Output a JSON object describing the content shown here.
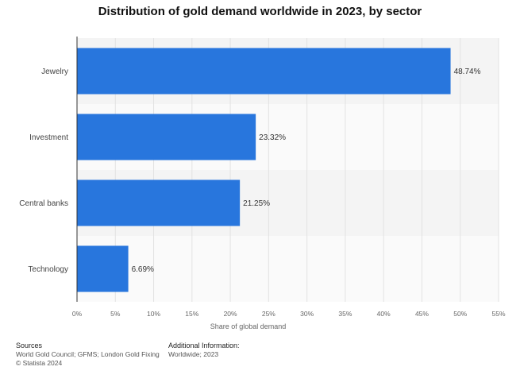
{
  "chart_data": {
    "type": "bar",
    "orientation": "horizontal",
    "title": "Distribution of gold demand worldwide in 2023, by sector",
    "xlabel": "Share of global demand",
    "ylabel": "",
    "categories": [
      "Jewelry",
      "Investment",
      "Central banks",
      "Technology"
    ],
    "values": [
      48.74,
      23.32,
      21.25,
      6.69
    ],
    "value_labels": [
      "48.74%",
      "23.32%",
      "21.25%",
      "6.69%"
    ],
    "xlim": [
      0,
      55
    ],
    "x_ticks": [
      "0%",
      "5%",
      "10%",
      "15%",
      "20%",
      "25%",
      "30%",
      "35%",
      "40%",
      "45%",
      "50%",
      "55%"
    ],
    "grid": true,
    "bar_color": "#2876dd"
  },
  "footer": {
    "sources_heading": "Sources",
    "sources_text": "World Gold Council; GFMS; London Gold Fixing",
    "copyright": "© Statista 2024",
    "info_heading": "Additional Information:",
    "info_text": "Worldwide; 2023"
  }
}
